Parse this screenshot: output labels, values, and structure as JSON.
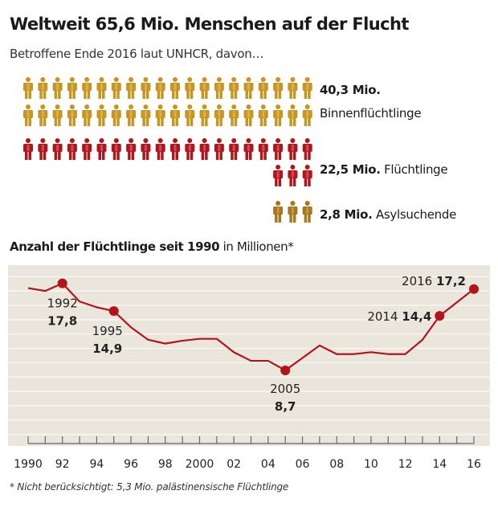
{
  "title": "Weltweit 65,6 Mio. Menschen auf der Flucht",
  "subtitle": "Betroffene Ende 2016 laut UNHCR, davon…",
  "pictogram": {
    "groups": [
      {
        "value_label": "40,3 Mio.",
        "label": "Binnenflüchtlinge",
        "value": 40.3,
        "icons": 40,
        "color": "#c8951f"
      },
      {
        "value_label": "22,5 Mio.",
        "label": "Flüchtlinge",
        "value": 22.5,
        "icons": 23,
        "color": "#b3141c"
      },
      {
        "value_label": "2,8 Mio.",
        "label": "Asylsuchende",
        "value": 2.8,
        "icons": 3,
        "color": "#a8761c"
      }
    ]
  },
  "section_title": {
    "bold": "Anzahl der Flüchtlinge seit 1990",
    "normal": " in Millionen*"
  },
  "footnote": "* Nicht berücksichtigt: 5,3 Mio. palästinensische Flüchtlinge",
  "chart_data": {
    "type": "line",
    "x": [
      1990,
      1991,
      1992,
      1993,
      1994,
      1995,
      1996,
      1997,
      1998,
      1999,
      2000,
      2001,
      2002,
      2003,
      2004,
      2005,
      2006,
      2007,
      2008,
      2009,
      2010,
      2011,
      2012,
      2013,
      2014,
      2015,
      2016
    ],
    "values": [
      17.3,
      17.0,
      17.8,
      15.9,
      15.3,
      14.9,
      13.2,
      11.9,
      11.5,
      11.8,
      12.0,
      12.0,
      10.6,
      9.7,
      9.7,
      8.7,
      10.0,
      11.3,
      10.4,
      10.4,
      10.6,
      10.4,
      10.4,
      11.9,
      14.4,
      15.8,
      17.2
    ],
    "xlabel": "",
    "ylabel": "",
    "xlim": [
      1990,
      2016
    ],
    "ylim": [
      0.8,
      19.7
    ],
    "tick_labels": [
      "1990",
      "92",
      "94",
      "96",
      "98",
      "2000",
      "02",
      "04",
      "06",
      "08",
      "10",
      "12",
      "14",
      "16"
    ],
    "annotations": [
      {
        "year": "1992",
        "value": "17,8",
        "x": 1992,
        "y": 17.8
      },
      {
        "year": "1995",
        "value": "14,9",
        "x": 1995,
        "y": 14.9
      },
      {
        "year": "2005",
        "value": "8,7",
        "x": 2005,
        "y": 8.7
      },
      {
        "year": "2014",
        "value": "14,4",
        "x": 2014,
        "y": 14.4
      },
      {
        "year": "2016",
        "value": "17,2",
        "x": 2016,
        "y": 17.2
      }
    ],
    "grid": true,
    "line_color": "#b3141c",
    "background_color": "#ebe6dc"
  }
}
